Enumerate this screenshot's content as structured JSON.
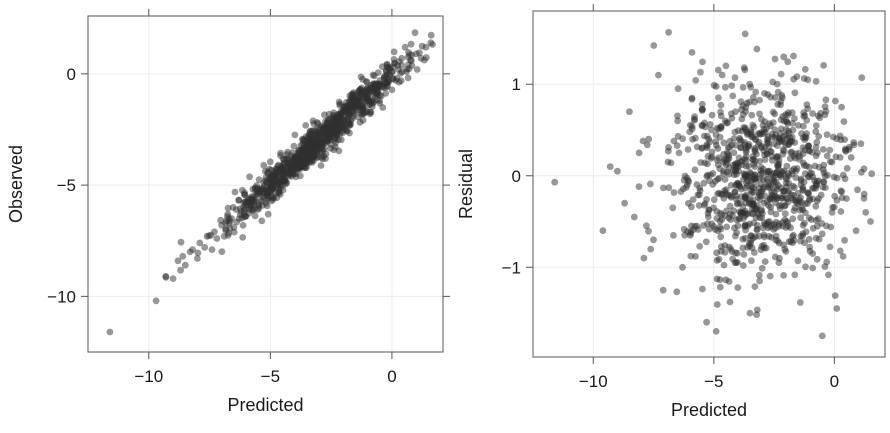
{
  "chart_data": [
    {
      "type": "scatter",
      "xlabel": "Predicted",
      "ylabel": "Observed",
      "xlim": [
        -12.5,
        2.1
      ],
      "ylim": [
        -12.5,
        2.6
      ],
      "xticks": [
        -10,
        -5,
        0
      ],
      "yticks": [
        -10,
        -5,
        0
      ],
      "xtick_labels": [
        "−10",
        "−5",
        "0"
      ],
      "ytick_labels": [
        "−10",
        "−5",
        "0"
      ],
      "grid": true,
      "point_color": "#303030",
      "trend": "observed ≈ predicted (points cluster tightly along the diagonal)",
      "points": [
        {
          "x": -11.6,
          "y": -11.6
        },
        {
          "x": -9.7,
          "y": -10.2
        },
        {
          "x": -9.3,
          "y": -9.1
        },
        {
          "x": -9.0,
          "y": -9.2
        },
        {
          "x": -8.8,
          "y": -8.4
        },
        {
          "x": -8.6,
          "y": -8.2
        },
        {
          "x": -8.5,
          "y": -8.6
        },
        {
          "x": -8.3,
          "y": -8.0
        },
        {
          "x": -8.2,
          "y": -7.9
        },
        {
          "x": -8.0,
          "y": -8.3
        },
        {
          "x": -7.9,
          "y": -7.6
        },
        {
          "x": -7.7,
          "y": -7.8
        },
        {
          "x": -7.6,
          "y": -7.3
        },
        {
          "x": -7.4,
          "y": -7.9
        },
        {
          "x": -7.3,
          "y": -7.1
        },
        {
          "x": -7.2,
          "y": -7.4
        },
        {
          "x": -7.0,
          "y": -6.8
        },
        {
          "x": -6.9,
          "y": -7.3
        },
        {
          "x": -6.8,
          "y": -6.6
        },
        {
          "x": -6.6,
          "y": -6.5
        },
        {
          "x": -6.5,
          "y": -6.9
        },
        {
          "x": -6.4,
          "y": -6.1
        },
        {
          "x": -6.2,
          "y": -6.2
        },
        {
          "x": -6.1,
          "y": -5.8
        },
        {
          "x": -6.0,
          "y": -6.4
        },
        {
          "x": -5.9,
          "y": -5.6
        },
        {
          "x": -5.8,
          "y": -6.0
        },
        {
          "x": -5.6,
          "y": -5.3
        },
        {
          "x": -5.5,
          "y": -5.9
        },
        {
          "x": -5.4,
          "y": -5.2
        },
        {
          "x": -5.3,
          "y": -5.5
        },
        {
          "x": -5.2,
          "y": -4.8
        },
        {
          "x": -5.1,
          "y": -5.3
        },
        {
          "x": -5.0,
          "y": -4.6
        },
        {
          "x": -4.9,
          "y": -5.1
        },
        {
          "x": -4.8,
          "y": -4.9
        },
        {
          "x": -4.7,
          "y": -4.4
        },
        {
          "x": -4.6,
          "y": -5.0
        },
        {
          "x": -4.5,
          "y": -4.3
        },
        {
          "x": -4.4,
          "y": -4.7
        },
        {
          "x": -4.3,
          "y": -4.0
        },
        {
          "x": -4.2,
          "y": -4.5
        },
        {
          "x": -4.1,
          "y": -3.8
        },
        {
          "x": -4.0,
          "y": -4.2
        },
        {
          "x": -3.9,
          "y": -3.7
        },
        {
          "x": -3.8,
          "y": -4.1
        },
        {
          "x": -3.7,
          "y": -3.5
        },
        {
          "x": -3.6,
          "y": -3.9
        },
        {
          "x": -3.5,
          "y": -3.3
        },
        {
          "x": -3.4,
          "y": -3.8
        },
        {
          "x": -3.3,
          "y": -3.1
        },
        {
          "x": -3.2,
          "y": -3.5
        },
        {
          "x": -3.1,
          "y": -2.9
        },
        {
          "x": -3.0,
          "y": -3.3
        },
        {
          "x": -2.9,
          "y": -2.7
        },
        {
          "x": -2.8,
          "y": -3.1
        },
        {
          "x": -2.7,
          "y": -2.4
        },
        {
          "x": -2.6,
          "y": -2.9
        },
        {
          "x": -2.5,
          "y": -2.3
        },
        {
          "x": -2.4,
          "y": -2.6
        },
        {
          "x": -2.3,
          "y": -2.0
        },
        {
          "x": -2.2,
          "y": -2.5
        },
        {
          "x": -2.1,
          "y": -1.8
        },
        {
          "x": -2.0,
          "y": -2.2
        },
        {
          "x": -1.9,
          "y": -1.6
        },
        {
          "x": -1.8,
          "y": -2.0
        },
        {
          "x": -1.7,
          "y": -1.4
        },
        {
          "x": -1.6,
          "y": -1.9
        },
        {
          "x": -1.5,
          "y": -1.2
        },
        {
          "x": -1.4,
          "y": -1.6
        },
        {
          "x": -1.3,
          "y": -1.0
        },
        {
          "x": -1.2,
          "y": -1.4
        },
        {
          "x": -1.1,
          "y": -0.8
        },
        {
          "x": -1.0,
          "y": -1.2
        },
        {
          "x": -0.9,
          "y": -0.7
        },
        {
          "x": -0.8,
          "y": -1.0
        },
        {
          "x": -0.7,
          "y": -0.5
        },
        {
          "x": -0.6,
          "y": -0.8
        },
        {
          "x": -0.5,
          "y": -0.3
        },
        {
          "x": -0.4,
          "y": -0.6
        },
        {
          "x": -0.3,
          "y": -0.1
        },
        {
          "x": -0.2,
          "y": -0.4
        },
        {
          "x": 0.0,
          "y": 0.1
        },
        {
          "x": 0.2,
          "y": -0.2
        },
        {
          "x": 0.4,
          "y": 0.4
        },
        {
          "x": 0.6,
          "y": 0.1
        },
        {
          "x": 0.8,
          "y": 0.6
        },
        {
          "x": 1.0,
          "y": 0.9
        },
        {
          "x": 1.2,
          "y": 0.7
        },
        {
          "x": 1.4,
          "y": 1.2
        },
        {
          "x": 1.6,
          "y": 1.4
        }
      ]
    },
    {
      "type": "scatter",
      "xlabel": "Predicted",
      "ylabel": "Residual",
      "xlim": [
        -12.5,
        2.1
      ],
      "ylim": [
        -1.98,
        1.8
      ],
      "xticks": [
        -10,
        -5,
        0
      ],
      "yticks": [
        -1,
        0,
        1
      ],
      "xtick_labels": [
        "−10",
        "−5",
        "0"
      ],
      "ytick_labels": [
        "−1",
        "0",
        "1"
      ],
      "grid": true,
      "point_color": "#303030",
      "trend": "residuals centered on 0, no visible pattern versus predicted",
      "points": [
        {
          "x": -11.6,
          "y": -0.07
        },
        {
          "x": -9.6,
          "y": -0.6
        },
        {
          "x": -9.3,
          "y": 0.1
        },
        {
          "x": -9.0,
          "y": 0.05
        },
        {
          "x": -8.7,
          "y": -0.3
        },
        {
          "x": -8.5,
          "y": 0.7
        },
        {
          "x": -8.3,
          "y": -0.45
        },
        {
          "x": -8.1,
          "y": 0.25
        },
        {
          "x": -7.9,
          "y": -0.9
        },
        {
          "x": -7.7,
          "y": 0.4
        },
        {
          "x": -7.5,
          "y": -0.7
        },
        {
          "x": -7.3,
          "y": 1.1
        },
        {
          "x": -7.1,
          "y": -1.25
        },
        {
          "x": -6.9,
          "y": 0.15
        },
        {
          "x": -6.7,
          "y": -0.35
        },
        {
          "x": -6.5,
          "y": 0.6
        },
        {
          "x": -6.3,
          "y": -1.0
        },
        {
          "x": -6.1,
          "y": -0.1
        },
        {
          "x": -5.9,
          "y": 0.85
        },
        {
          "x": -5.7,
          "y": -0.55
        },
        {
          "x": -5.5,
          "y": 0.3
        },
        {
          "x": -5.3,
          "y": -1.6
        },
        {
          "x": -5.1,
          "y": 0.5
        },
        {
          "x": -4.9,
          "y": -1.7
        },
        {
          "x": -4.7,
          "y": -0.2
        },
        {
          "x": -4.5,
          "y": 1.2
        },
        {
          "x": -4.3,
          "y": -0.8
        },
        {
          "x": -4.1,
          "y": 0.7
        },
        {
          "x": -3.9,
          "y": -0.3
        },
        {
          "x": -3.7,
          "y": 1.55
        },
        {
          "x": -3.5,
          "y": -1.5
        },
        {
          "x": -3.3,
          "y": 0.1
        },
        {
          "x": -3.1,
          "y": -1.15
        },
        {
          "x": -2.9,
          "y": 0.9
        },
        {
          "x": -2.7,
          "y": -0.5
        },
        {
          "x": -2.5,
          "y": 0.35
        },
        {
          "x": -2.3,
          "y": -0.95
        },
        {
          "x": -2.1,
          "y": 1.3
        },
        {
          "x": -1.9,
          "y": 0.0
        },
        {
          "x": -1.7,
          "y": -0.65
        },
        {
          "x": -1.5,
          "y": 0.55
        },
        {
          "x": -1.3,
          "y": -0.15
        },
        {
          "x": -1.1,
          "y": 1.05
        },
        {
          "x": -0.9,
          "y": -0.85
        },
        {
          "x": -0.7,
          "y": 0.25
        },
        {
          "x": -0.5,
          "y": -1.75
        },
        {
          "x": -0.3,
          "y": 0.45
        },
        {
          "x": -0.1,
          "y": -0.4
        },
        {
          "x": 0.1,
          "y": -1.45
        },
        {
          "x": 0.3,
          "y": 0.75
        },
        {
          "x": 0.5,
          "y": -0.25
        },
        {
          "x": 0.7,
          "y": 0.2
        },
        {
          "x": 0.9,
          "y": -0.6
        },
        {
          "x": 1.1,
          "y": 0.35
        },
        {
          "x": 1.3,
          "y": -0.4
        },
        {
          "x": 1.5,
          "y": -0.5
        }
      ]
    }
  ]
}
